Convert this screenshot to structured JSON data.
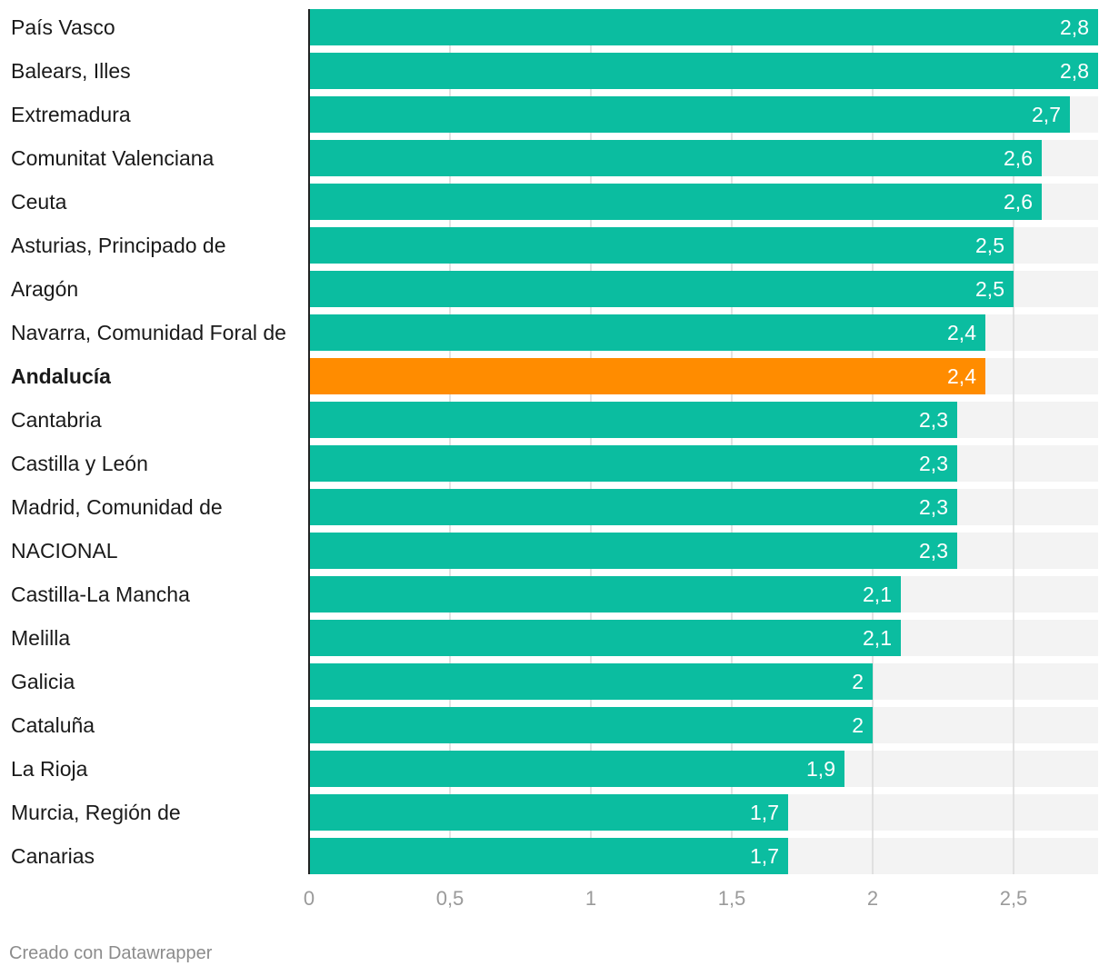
{
  "chart_data": {
    "type": "bar",
    "orientation": "horizontal",
    "categories": [
      "País Vasco",
      "Balears, Illes",
      "Extremadura",
      "Comunitat Valenciana",
      "Ceuta",
      "Asturias, Principado de",
      "Aragón",
      "Navarra, Comunidad Foral de",
      "Andalucía",
      "Cantabria",
      "Castilla y León",
      "Madrid, Comunidad de",
      "NACIONAL",
      "Castilla-La Mancha",
      "Melilla",
      "Galicia",
      "Cataluña",
      "La Rioja",
      "Murcia, Región de",
      "Canarias"
    ],
    "values": [
      2.8,
      2.8,
      2.7,
      2.6,
      2.6,
      2.5,
      2.5,
      2.4,
      2.4,
      2.3,
      2.3,
      2.3,
      2.3,
      2.1,
      2.1,
      2.0,
      2.0,
      1.9,
      1.7,
      1.7
    ],
    "value_labels": [
      "2,8",
      "2,8",
      "2,7",
      "2,6",
      "2,6",
      "2,5",
      "2,5",
      "2,4",
      "2,4",
      "2,3",
      "2,3",
      "2,3",
      "2,3",
      "2,1",
      "2,1",
      "2",
      "2",
      "1,9",
      "1,7",
      "1,7"
    ],
    "highlight": "Andalucía",
    "xlim": [
      0,
      2.8
    ],
    "xticks": [
      0,
      0.5,
      1,
      1.5,
      2,
      2.5
    ],
    "xtick_labels": [
      "0",
      "0,5",
      "1",
      "1,5",
      "2",
      "2,5"
    ],
    "grid": true,
    "colors": {
      "bar": "#0bbda0",
      "highlight": "#ff8c00",
      "track": "#f3f3f3",
      "grid": "#d9d9d9",
      "axis": "#222222"
    }
  },
  "footer": {
    "credit": "Creado con Datawrapper"
  }
}
